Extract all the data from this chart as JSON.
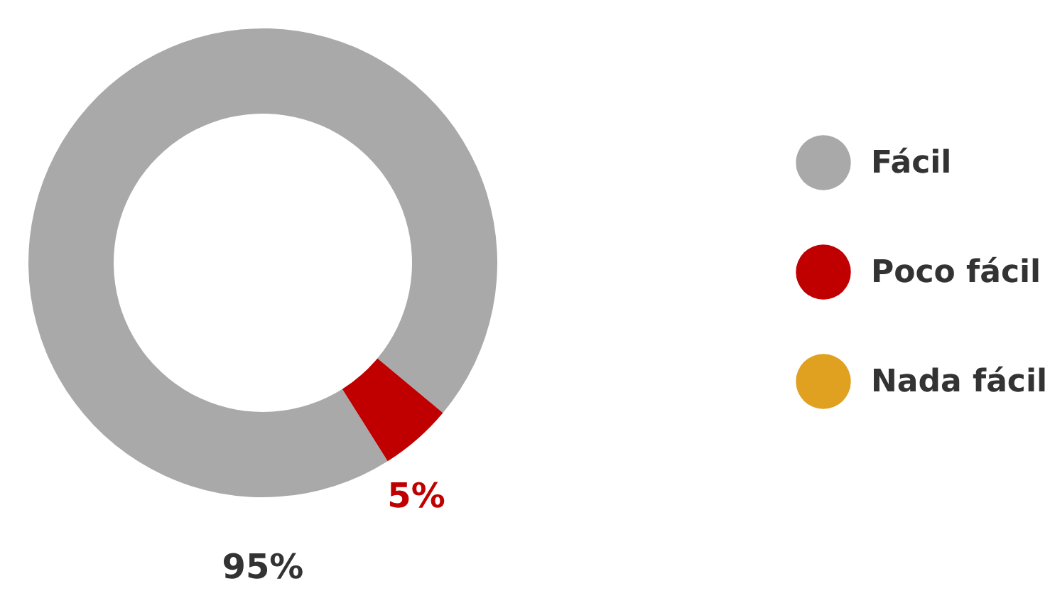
{
  "chart_data": {
    "type": "donut",
    "categories": [
      "Fácil",
      "Poco fácil",
      "Nada fácil"
    ],
    "values": [
      95,
      5,
      0
    ],
    "colors": [
      "#a9a9a9",
      "#c00000",
      "#e0a020"
    ],
    "value_labels": [
      "95%",
      "5%",
      null
    ],
    "legend": "right"
  }
}
